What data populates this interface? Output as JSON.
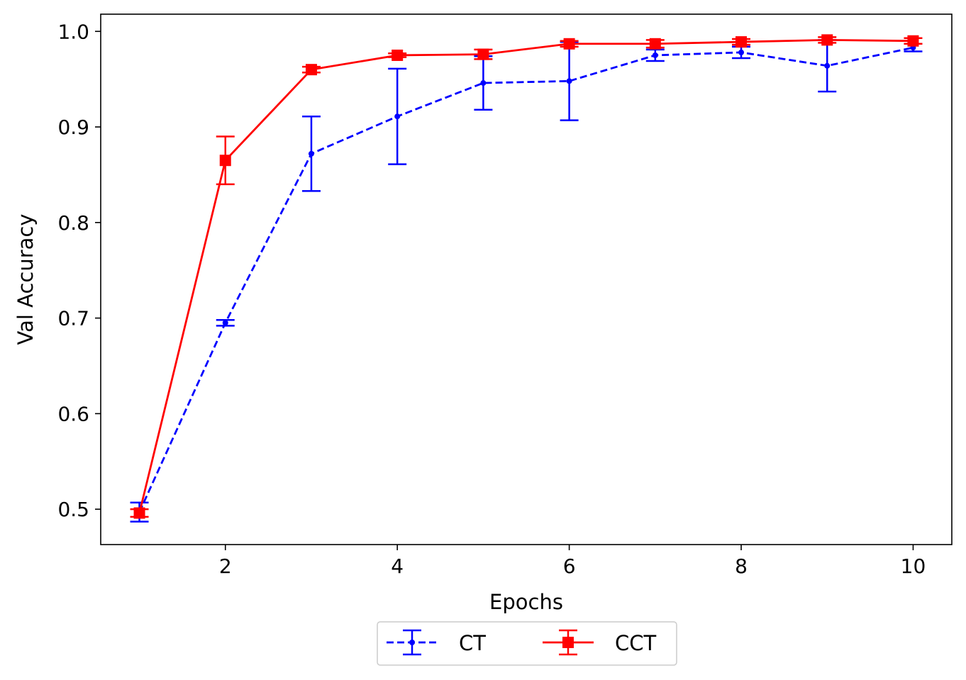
{
  "chart_data": {
    "type": "line",
    "title": "",
    "xlabel": "Epochs",
    "ylabel": "Val Accuracy",
    "xlim": [
      0.55,
      10.45
    ],
    "ylim": [
      0.463,
      1.018
    ],
    "xticks": [
      2,
      4,
      6,
      8,
      10
    ],
    "xtick_labels": [
      "2",
      "4",
      "6",
      "8",
      "10"
    ],
    "yticks": [
      0.5,
      0.6,
      0.7,
      0.8,
      0.9,
      1.0
    ],
    "ytick_labels": [
      "0.5",
      "0.6",
      "0.7",
      "0.8",
      "0.9",
      "1.0"
    ],
    "grid": false,
    "legend_position": "below-center",
    "x": [
      1,
      2,
      3,
      4,
      5,
      6,
      7,
      8,
      9,
      10
    ],
    "series": [
      {
        "name": "CT",
        "color": "#0000ff",
        "linestyle": "dashed",
        "marker": "point",
        "values": [
          0.497,
          0.695,
          0.872,
          0.911,
          0.946,
          0.948,
          0.975,
          0.978,
          0.964,
          0.983
        ],
        "errors": [
          0.01,
          0.003,
          0.039,
          0.05,
          0.028,
          0.041,
          0.006,
          0.006,
          0.027,
          0.004
        ]
      },
      {
        "name": "CCT",
        "color": "#ff0000",
        "linestyle": "solid",
        "marker": "square",
        "values": [
          0.496,
          0.865,
          0.96,
          0.975,
          0.976,
          0.987,
          0.987,
          0.989,
          0.991,
          0.99
        ],
        "errors": [
          0.004,
          0.025,
          0.003,
          0.002,
          0.005,
          0.003,
          0.004,
          0.003,
          0.003,
          0.003
        ]
      }
    ]
  }
}
